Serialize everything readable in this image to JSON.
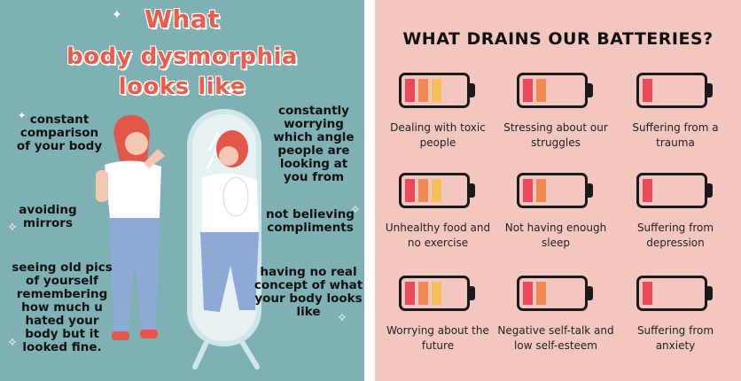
{
  "left_panel": {
    "title": [
      "What",
      "body dysmorphia",
      "looks like"
    ],
    "captions": [
      "constant comparison of your body",
      "avoiding mirrors",
      "seeing old pics of yourself remembering how much u hated your body but it looked fine.",
      "constantly worrying which angle people are looking at you from",
      "not believing compliments",
      "having no real concept of what your body looks like"
    ],
    "colors": {
      "background": "#7fb0b4",
      "title": "#ee5c49",
      "hair": "#e2574a",
      "shirt": "#ffffff",
      "pants": "#8fa9d6",
      "mirror_frame": "#cfe6ea"
    }
  },
  "right_panel": {
    "title": "WHAT DRAINS OUR BATTERIES?",
    "items": [
      {
        "label": "Dealing with toxic people",
        "level": 3
      },
      {
        "label": "Stressing about our struggles",
        "level": 2
      },
      {
        "label": "Suffering from a trauma",
        "level": 1
      },
      {
        "label": "Unhealthy food and no exercise",
        "level": 3
      },
      {
        "label": "Not having enough sleep",
        "level": 2
      },
      {
        "label": "Suffering from depression",
        "level": 1
      },
      {
        "label": "Worrying about the future",
        "level": 3
      },
      {
        "label": "Negative self-talk and low self-esteem",
        "level": 2
      },
      {
        "label": "Suffering from anxiety",
        "level": 1
      }
    ],
    "colors": {
      "background": "#f3c6bf",
      "segment_red": "#ea4a5a",
      "segment_orange": "#f08a55",
      "segment_yellow": "#f7bf57",
      "outline": "#1a1a1a"
    }
  }
}
